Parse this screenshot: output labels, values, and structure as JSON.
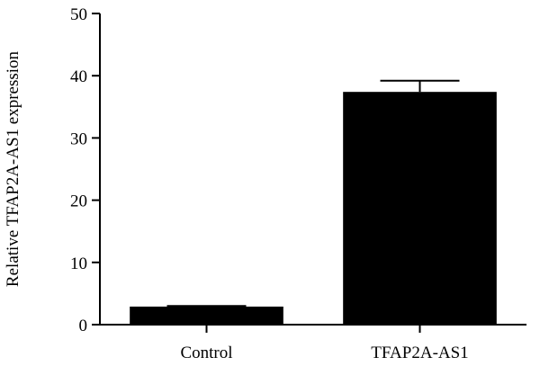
{
  "chart_data": {
    "type": "bar",
    "categories": [
      "Control",
      "TFAP2A-AS1"
    ],
    "values": [
      2.9,
      37.4
    ],
    "error_upper": [
      3.0,
      39.2
    ],
    "title": "",
    "xlabel": "",
    "ylabel": "Relative TFAP2A-AS1 expression",
    "ylim": [
      0,
      50
    ],
    "yticks": [
      0,
      10,
      20,
      30,
      40,
      50
    ],
    "grid": false,
    "bar_color": "#000000"
  }
}
